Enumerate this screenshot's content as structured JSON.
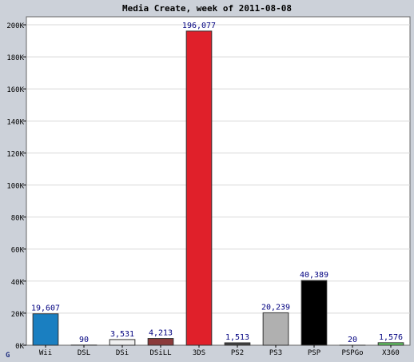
{
  "chart_data": {
    "type": "bar",
    "title": "Media Create, week of 2011-08-08",
    "xlabel": "",
    "ylabel": "",
    "ylim": [
      0,
      205000
    ],
    "y_ticks": [
      0,
      20000,
      40000,
      60000,
      80000,
      100000,
      120000,
      140000,
      160000,
      180000,
      200000
    ],
    "y_tick_labels": [
      "0K",
      "20K",
      "40K",
      "60K",
      "80K",
      "100K",
      "120K",
      "140K",
      "160K",
      "180K",
      "200K"
    ],
    "categories": [
      "Wii",
      "DSL",
      "DSi",
      "DSiLL",
      "3DS",
      "PS2",
      "PS3",
      "PSP",
      "PSPGo",
      "X360"
    ],
    "values": [
      19607,
      90,
      3531,
      4213,
      196077,
      1513,
      20239,
      40389,
      20,
      1576
    ],
    "value_labels": [
      "19,607",
      "90",
      "3,531",
      "4,213",
      "196,077",
      "1,513",
      "20,239",
      "40,389",
      "20",
      "1,576"
    ],
    "bar_colors": [
      "#1a7fc1",
      "#dddddd",
      "#f0f0f0",
      "#8b3a3a",
      "#e0202a",
      "#404040",
      "#b0b0b0",
      "#000000",
      "#ffffff",
      "#66cc66"
    ],
    "grid": true,
    "legend": "none",
    "colors": {
      "background": "#ccd1d9",
      "plot_background": "#ffffff",
      "grid": "#d8d8d8",
      "value_label": "#000080"
    },
    "corner_mark": "G"
  }
}
